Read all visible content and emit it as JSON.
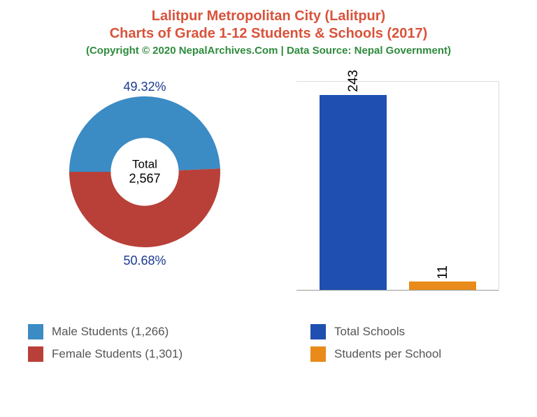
{
  "header": {
    "title_line1": "Lalitpur Metropolitan City (Lalitpur)",
    "title_line2": "Charts of Grade 1-12 Students & Schools (2017)",
    "title_color": "#d9533b",
    "title_fontsize": 20,
    "copyright": "(Copyright © 2020 NepalArchives.Com | Data Source: Nepal Government)",
    "copyright_color": "#2e8b3d",
    "copyright_fontsize": 15
  },
  "donut": {
    "type": "donut",
    "slices": [
      {
        "label": "49.32%",
        "value": 49.32,
        "color": "#3b8bc4",
        "label_color": "#1a3a8f"
      },
      {
        "label": "50.68%",
        "value": 50.68,
        "color": "#b84038",
        "label_color": "#1a3a8f"
      }
    ],
    "inner_radius_pct": 45,
    "outer_radius_pct": 100,
    "center_label": "Total",
    "center_value": "2,567",
    "center_text_color": "#000000",
    "background_color": "#ffffff"
  },
  "bar_chart": {
    "type": "bar",
    "bars": [
      {
        "label": "243",
        "value": 243,
        "color": "#1f4fb0"
      },
      {
        "label": "11",
        "value": 11,
        "color": "#e88b1a"
      }
    ],
    "max_value": 260,
    "bar_width_pct": 33,
    "value_label_fontsize": 19,
    "value_label_color": "#000000",
    "border_color": "#dddddd",
    "baseline_color": "#999999"
  },
  "legends": {
    "left": [
      {
        "text": "Male Students (1,266)",
        "color": "#3b8bc4"
      },
      {
        "text": "Female Students (1,301)",
        "color": "#b84038"
      }
    ],
    "right": [
      {
        "text": "Total Schools",
        "color": "#1f4fb0"
      },
      {
        "text": "Students per School",
        "color": "#e88b1a"
      }
    ],
    "text_color": "#555555",
    "fontsize": 17
  }
}
